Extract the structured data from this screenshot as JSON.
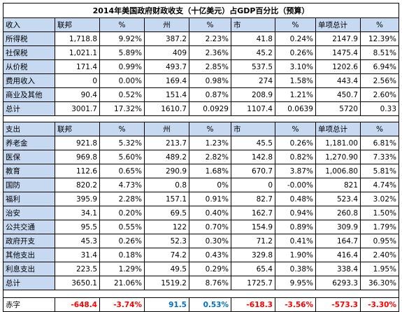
{
  "title": "2014年美国政府财政收支（十亿美元）占GDP百分比（预算）",
  "revenue": {
    "headers": [
      "收入",
      "联邦",
      "%",
      "州",
      "%",
      "市",
      "%",
      "单项总计",
      "%"
    ],
    "rows": [
      {
        "label": "所得税",
        "cells": [
          "1,718.8",
          "9.92%",
          "387.2",
          "2.23%",
          "41.8",
          "0.24%",
          "2147.9",
          "12.39%"
        ]
      },
      {
        "label": "社保税",
        "cells": [
          "1,021.1",
          "5.89%",
          "409",
          "2.36%",
          "45.2",
          "0.26%",
          "1475.4",
          "8.51%"
        ]
      },
      {
        "label": "从价税",
        "cells": [
          "171.4",
          "0.99%",
          "493.7",
          "2.85%",
          "537.5",
          "3.10%",
          "1202.6",
          "6.94%"
        ]
      },
      {
        "label": "费用收入",
        "cells": [
          "0",
          "0.00%",
          "169.4",
          "0.98%",
          "274",
          "1.58%",
          "443.4",
          "2.56%"
        ]
      },
      {
        "label": "商业及其他",
        "cells": [
          "90.4",
          "0.52%",
          "151.4",
          "0.87%",
          "208.9",
          "1.21%",
          "450.7",
          "2.60%"
        ]
      },
      {
        "label": "总计",
        "cells": [
          "3001.7",
          "17.32%",
          "1610.7",
          "0.0929",
          "1107.4",
          "0.0639",
          "5720",
          "0.33"
        ]
      }
    ]
  },
  "expenditure": {
    "headers": [
      "支出",
      "联邦",
      "%",
      "州",
      "%",
      "市",
      "%",
      "单项总计",
      "%"
    ],
    "rows": [
      {
        "label": "养老金",
        "cells": [
          "921.8",
          "5.32%",
          "213.7",
          "1.23%",
          "45.5",
          "0.26%",
          "1,181.00",
          "6.81%"
        ]
      },
      {
        "label": "医保",
        "cells": [
          "969.8",
          "5.60%",
          "489.2",
          "2.82%",
          "142.8",
          "0.82%",
          "1,270.90",
          "7.33%"
        ]
      },
      {
        "label": "教育",
        "cells": [
          "112.6",
          "0.65%",
          "290.9",
          "1.68%",
          "670.7",
          "3.87%",
          "1,006.80",
          "5.81%"
        ]
      },
      {
        "label": "国防",
        "cells": [
          "820.2",
          "4.73%",
          "0.8",
          "0%",
          "0",
          "-0.00%",
          "821",
          "4.74%"
        ]
      },
      {
        "label": "福利",
        "cells": [
          "395.9",
          "2.28%",
          "157.1",
          "0.91%",
          "82.7",
          "0.48%",
          "523.4",
          "3.02%"
        ]
      },
      {
        "label": "治安",
        "cells": [
          "34.1",
          "0.20%",
          "69.5",
          "0.40%",
          "162.7",
          "0.94%",
          "260.8",
          "1.50%"
        ]
      },
      {
        "label": "公共交通",
        "cells": [
          "95.5",
          "0.55%",
          "122",
          "0.70%",
          "154.9",
          "0.89%",
          "309.9",
          "1.79%"
        ]
      },
      {
        "label": "政府开支",
        "cells": [
          "45.3",
          "0.26%",
          "52.3",
          "0.30%",
          "71.2",
          "0.41%",
          "164.7",
          "0.95%"
        ]
      },
      {
        "label": "其他支出",
        "cells": [
          "31.4",
          "0.18%",
          "74.2",
          "0.43%",
          "329.8",
          "1.90%",
          "416.4",
          "2.40%"
        ]
      },
      {
        "label": "利息支出",
        "cells": [
          "223.5",
          "1.29%",
          "49.5",
          "0.29%",
          "65.4",
          "0.38%",
          "338.4",
          "1.95%"
        ]
      },
      {
        "label": "总计",
        "cells": [
          "3650.1",
          "21.06%",
          "1519.2",
          "8.76%",
          "1725.7",
          "9.95%",
          "6293.3",
          "36.30%"
        ]
      }
    ]
  },
  "deficit": {
    "label": "赤字",
    "cells": [
      "-648.4",
      "-3.74%",
      "91.5",
      "0.53%",
      "-618.3",
      "-3.56%",
      "-573.3",
      "-3.30%"
    ]
  },
  "colors": {
    "header_fill": "#c6d9f1",
    "negative": "#ff0000",
    "positive": "#0070c0",
    "grid": "#000000"
  }
}
